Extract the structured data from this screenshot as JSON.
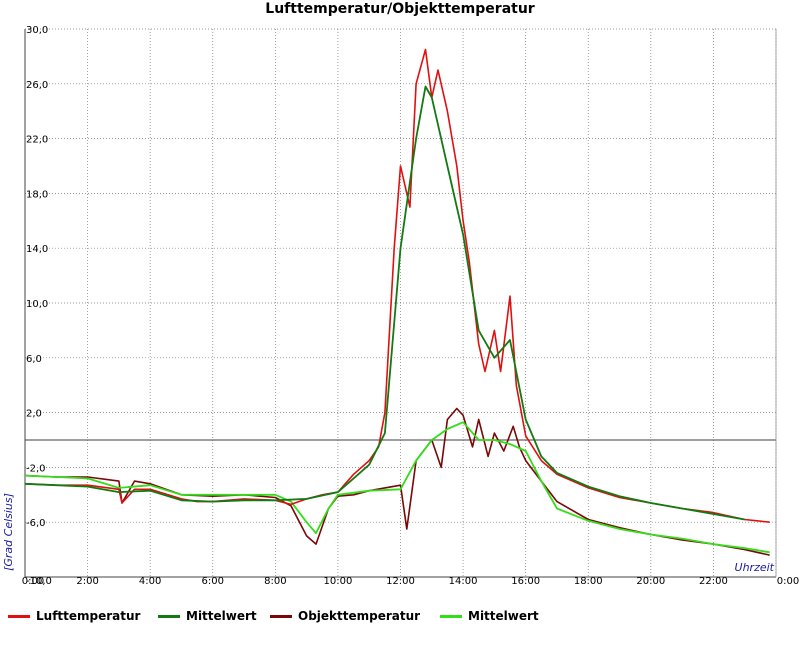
{
  "chart_data": {
    "type": "line",
    "title": "Lufttemperatur/Objekttemperatur",
    "xlabel": "Uhrzeit",
    "ylabel": "[Grad Celsius]",
    "xlim": [
      0,
      24
    ],
    "ylim": [
      -10,
      30
    ],
    "x_ticks": [
      "0:00",
      "2:00",
      "4:00",
      "6:00",
      "8:00",
      "10:00",
      "12:00",
      "14:00",
      "16:00",
      "18:00",
      "20:00",
      "22:00",
      "0:00"
    ],
    "y_ticks": [
      "-10,0",
      "-6,0",
      "-2,0",
      "2,0",
      "6,0",
      "10,0",
      "14,0",
      "18,0",
      "22,0",
      "26,0",
      "30,0"
    ],
    "grid": true,
    "legend_position": "bottom",
    "reference_line": 0,
    "series": [
      {
        "name": "Lufttemperatur",
        "color": "#e01010",
        "x": [
          0,
          1,
          2,
          3,
          3.1,
          3.5,
          4,
          5,
          5.5,
          6,
          7,
          8,
          8.5,
          9,
          9.5,
          10,
          10.5,
          11,
          11.3,
          11.5,
          11.8,
          12,
          12.3,
          12.5,
          12.8,
          13,
          13.2,
          13.5,
          13.8,
          14,
          14.2,
          14.5,
          14.7,
          15,
          15.2,
          15.5,
          15.7,
          16,
          16.5,
          17,
          18,
          19,
          20,
          21,
          22,
          23,
          23.8
        ],
        "y": [
          -3.2,
          -3.3,
          -3.3,
          -3.6,
          -4.6,
          -3.6,
          -3.6,
          -4.3,
          -4.5,
          -4.5,
          -4.3,
          -4.4,
          -4.7,
          -4.3,
          -4.0,
          -3.8,
          -2.5,
          -1.5,
          -0.5,
          2.0,
          14.0,
          20.0,
          17.0,
          26.0,
          28.5,
          25.0,
          27.0,
          24.0,
          20.0,
          16.0,
          13.0,
          7.0,
          5.0,
          8.0,
          5.0,
          10.5,
          4.0,
          0.3,
          -1.5,
          -2.5,
          -3.5,
          -4.2,
          -4.6,
          -5.0,
          -5.3,
          -5.8,
          -6.0
        ]
      },
      {
        "name": "Mittelwert",
        "color": "#127a12",
        "x": [
          0,
          1,
          2,
          3,
          4,
          5,
          6,
          7,
          8,
          9,
          10,
          10.5,
          11,
          11.5,
          12,
          12.5,
          12.8,
          13,
          13.5,
          14,
          14.5,
          15,
          15.5,
          16,
          16.5,
          17,
          18,
          19,
          20,
          21,
          22,
          23
        ],
        "y": [
          -3.2,
          -3.3,
          -3.4,
          -3.8,
          -3.7,
          -4.4,
          -4.5,
          -4.4,
          -4.4,
          -4.3,
          -3.8,
          -2.8,
          -1.8,
          0.5,
          14.0,
          22.0,
          25.8,
          25.0,
          20.0,
          15.0,
          8.0,
          6.0,
          7.3,
          1.5,
          -1.2,
          -2.4,
          -3.4,
          -4.1,
          -4.6,
          -5.0,
          -5.4,
          -5.8
        ]
      },
      {
        "name": "Objekttemperatur",
        "color": "#7a0808",
        "x": [
          0,
          1,
          2,
          3,
          3.1,
          3.5,
          4,
          5,
          6,
          7,
          8,
          8.5,
          9,
          9.3,
          9.7,
          10,
          10.5,
          11,
          11.5,
          12,
          12.2,
          12.5,
          13,
          13.3,
          13.5,
          13.8,
          14,
          14.3,
          14.5,
          14.8,
          15,
          15.3,
          15.6,
          15.8,
          16,
          16.5,
          17,
          18,
          19,
          20,
          21,
          22,
          23,
          23.8
        ],
        "y": [
          -2.6,
          -2.7,
          -2.7,
          -3.0,
          -4.6,
          -3.0,
          -3.2,
          -4.0,
          -4.1,
          -4.0,
          -4.2,
          -4.8,
          -7.0,
          -7.6,
          -5.0,
          -4.1,
          -4.0,
          -3.7,
          -3.5,
          -3.3,
          -6.5,
          -1.5,
          0.0,
          -2.0,
          1.5,
          2.3,
          1.8,
          -0.5,
          1.5,
          -1.2,
          0.5,
          -0.8,
          1.0,
          -0.5,
          -1.5,
          -3.0,
          -4.5,
          -5.8,
          -6.4,
          -6.9,
          -7.3,
          -7.6,
          -8.0,
          -8.4
        ]
      },
      {
        "name": "Mittelwert",
        "color": "#33dd1a",
        "x": [
          0,
          1,
          2,
          3,
          4,
          5,
          6,
          7,
          8,
          8.5,
          9,
          9.3,
          9.7,
          10,
          11,
          12,
          12.5,
          13,
          13.5,
          14,
          14.5,
          15,
          15.5,
          16,
          16.5,
          17,
          18,
          19,
          20,
          21,
          22,
          23,
          23.8
        ],
        "y": [
          -2.6,
          -2.7,
          -2.8,
          -3.5,
          -3.3,
          -4.0,
          -4.0,
          -4.0,
          -4.0,
          -4.5,
          -6.0,
          -6.8,
          -5.0,
          -4.0,
          -3.7,
          -3.6,
          -1.5,
          0.0,
          0.8,
          1.3,
          0.0,
          0.0,
          -0.3,
          -0.8,
          -3.0,
          -5.0,
          -5.9,
          -6.5,
          -6.9,
          -7.2,
          -7.6,
          -7.9,
          -8.2
        ]
      }
    ]
  }
}
